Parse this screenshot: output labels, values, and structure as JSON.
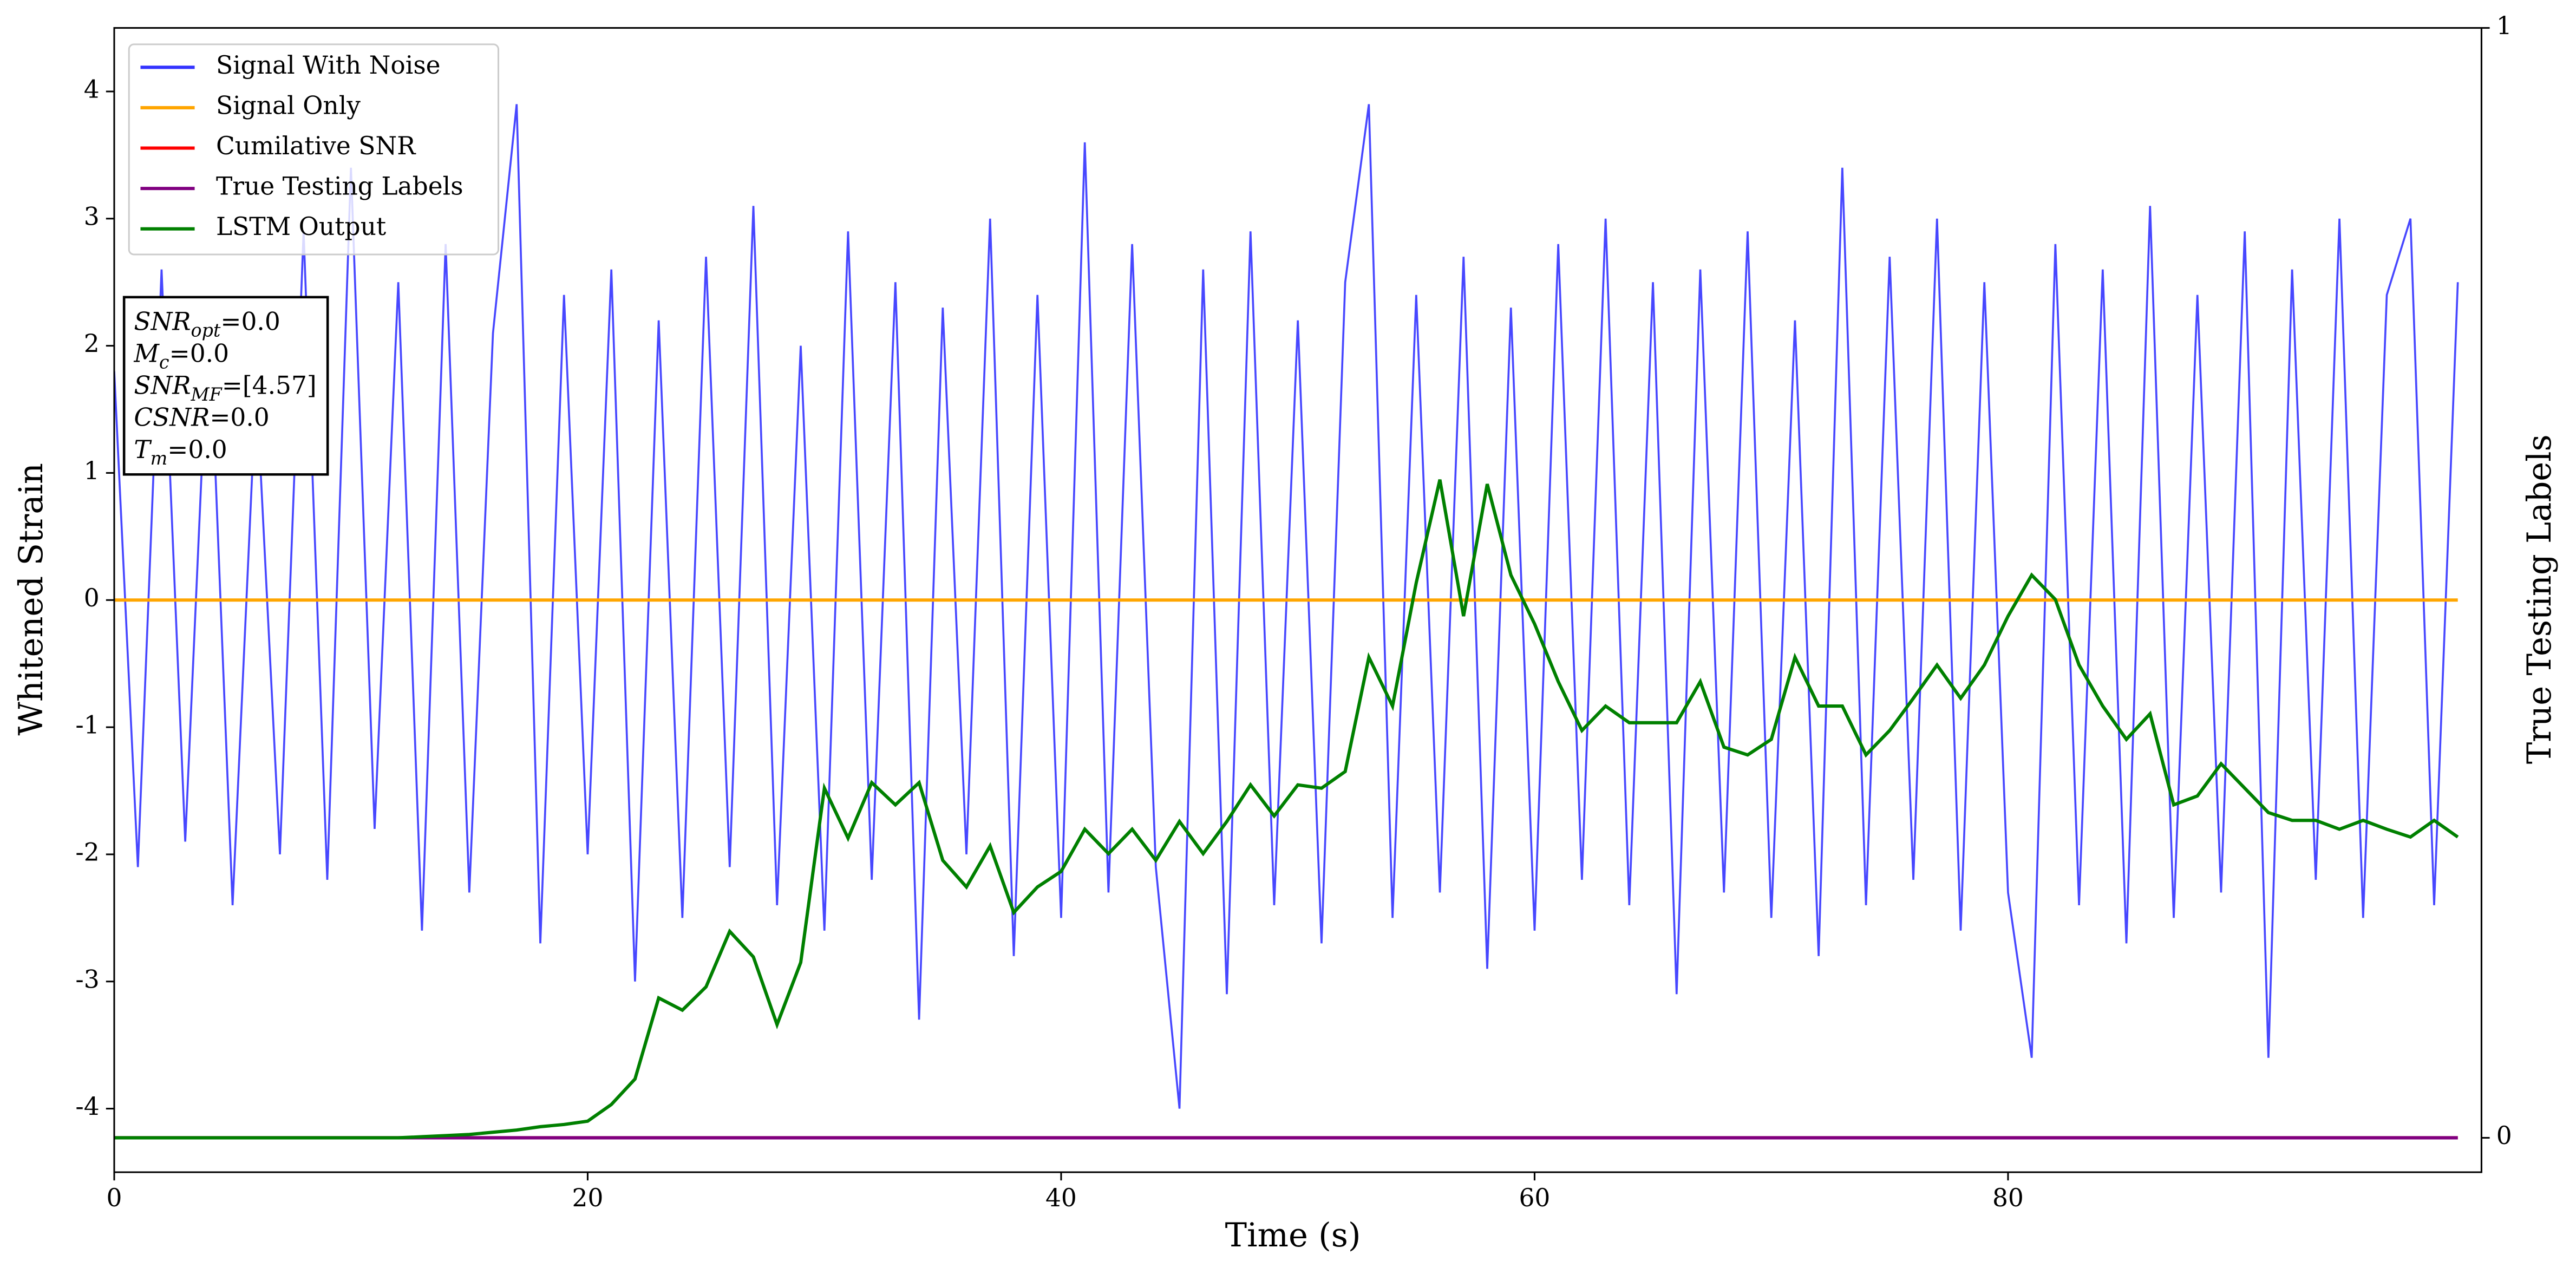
{
  "chart_data": {
    "type": "line",
    "xlabel": "Time (s)",
    "ylabel": "Whitened Strain",
    "y2label": "True Testing Labels",
    "x": [
      0,
      1,
      2,
      3,
      4,
      5,
      6,
      7,
      8,
      9,
      10,
      11,
      12,
      13,
      14,
      15,
      16,
      17,
      18,
      19,
      20,
      21,
      22,
      23,
      24,
      25,
      26,
      27,
      28,
      29,
      30,
      31,
      32,
      33,
      34,
      35,
      36,
      37,
      38,
      39,
      40,
      41,
      42,
      43,
      44,
      45,
      46,
      47,
      48,
      49,
      50,
      51,
      52,
      53,
      54,
      55,
      56,
      57,
      58,
      59,
      60,
      61,
      62,
      63,
      64,
      65,
      66,
      67,
      68,
      69,
      70,
      71,
      72,
      73,
      74,
      75,
      76,
      77,
      78,
      79,
      80,
      81,
      82,
      83,
      84,
      85,
      86,
      87,
      88,
      89,
      90,
      91,
      92,
      93,
      94,
      95,
      96,
      97,
      98,
      99
    ],
    "series": [
      {
        "name": "Signal With Noise",
        "color": "#3333ff",
        "axis": "y",
        "values": [
          1.8,
          -2.1,
          2.6,
          -1.9,
          2.3,
          -2.4,
          1.7,
          -2.0,
          2.9,
          -2.2,
          3.4,
          -1.8,
          2.5,
          -2.6,
          2.8,
          -2.3,
          2.1,
          3.9,
          -2.7,
          2.4,
          -2.0,
          2.6,
          -3.0,
          2.2,
          -2.5,
          2.7,
          -2.1,
          3.1,
          -2.4,
          2.0,
          -2.6,
          2.9,
          -2.2,
          2.5,
          -3.3,
          2.3,
          -2.0,
          3.0,
          -2.8,
          2.4,
          -2.5,
          3.6,
          -2.3,
          2.8,
          -2.1,
          -4.0,
          2.6,
          -3.1,
          2.9,
          -2.4,
          2.2,
          -2.7,
          2.5,
          3.9,
          -2.5,
          2.4,
          -2.3,
          2.7,
          -2.9,
          2.3,
          -2.6,
          2.8,
          -2.2,
          3.0,
          -2.4,
          2.5,
          -3.1,
          2.6,
          -2.3,
          2.9,
          -2.5,
          2.2,
          -2.8,
          3.4,
          -2.4,
          2.7,
          -2.2,
          3.0,
          -2.6,
          2.5,
          -2.3,
          -3.6,
          2.8,
          -2.4,
          2.6,
          -2.7,
          3.1,
          -2.5,
          2.4,
          -2.3,
          2.9,
          -3.6,
          2.6,
          -2.2,
          3.0,
          -2.5,
          2.4,
          3.0,
          -2.4,
          2.5
        ]
      },
      {
        "name": "Signal Only",
        "color": "#ffa500",
        "axis": "y",
        "values": [
          0,
          0,
          0,
          0,
          0,
          0,
          0,
          0,
          0,
          0,
          0,
          0,
          0,
          0,
          0,
          0,
          0,
          0,
          0,
          0,
          0,
          0,
          0,
          0,
          0,
          0,
          0,
          0,
          0,
          0,
          0,
          0,
          0,
          0,
          0,
          0,
          0,
          0,
          0,
          0,
          0,
          0,
          0,
          0,
          0,
          0,
          0,
          0,
          0,
          0,
          0,
          0,
          0,
          0,
          0,
          0,
          0,
          0,
          0,
          0,
          0,
          0,
          0,
          0,
          0,
          0,
          0,
          0,
          0,
          0,
          0,
          0,
          0,
          0,
          0,
          0,
          0,
          0,
          0,
          0,
          0,
          0,
          0,
          0,
          0,
          0,
          0,
          0,
          0,
          0,
          0,
          0,
          0,
          0,
          0,
          0,
          0,
          0,
          0,
          0
        ]
      },
      {
        "name": "Cumilative SNR",
        "color": "#ff0000",
        "axis": "y2",
        "values": [
          0,
          0,
          0,
          0,
          0,
          0,
          0,
          0,
          0,
          0,
          0,
          0,
          0,
          0,
          0,
          0,
          0,
          0,
          0,
          0,
          0,
          0,
          0,
          0,
          0,
          0,
          0,
          0,
          0,
          0,
          0,
          0,
          0,
          0,
          0,
          0,
          0,
          0,
          0,
          0,
          0,
          0,
          0,
          0,
          0,
          0,
          0,
          0,
          0,
          0,
          0,
          0,
          0,
          0,
          0,
          0,
          0,
          0,
          0,
          0,
          0,
          0,
          0,
          0,
          0,
          0,
          0,
          0,
          0,
          0,
          0,
          0,
          0,
          0,
          0,
          0,
          0,
          0,
          0,
          0,
          0,
          0,
          0,
          0,
          0,
          0,
          0,
          0,
          0,
          0,
          0,
          0,
          0,
          0,
          0,
          0,
          0,
          0,
          0,
          0
        ]
      },
      {
        "name": "True Testing Labels",
        "color": "#800080",
        "axis": "y2",
        "values": [
          0,
          0,
          0,
          0,
          0,
          0,
          0,
          0,
          0,
          0,
          0,
          0,
          0,
          0,
          0,
          0,
          0,
          0,
          0,
          0,
          0,
          0,
          0,
          0,
          0,
          0,
          0,
          0,
          0,
          0,
          0,
          0,
          0,
          0,
          0,
          0,
          0,
          0,
          0,
          0,
          0,
          0,
          0,
          0,
          0,
          0,
          0,
          0,
          0,
          0,
          0,
          0,
          0,
          0,
          0,
          0,
          0,
          0,
          0,
          0,
          0,
          0,
          0,
          0,
          0,
          0,
          0,
          0,
          0,
          0,
          0,
          0,
          0,
          0,
          0,
          0,
          0,
          0,
          0,
          0,
          0,
          0,
          0,
          0,
          0,
          0,
          0,
          0,
          0,
          0,
          0,
          0,
          0,
          0,
          0,
          0,
          0,
          0,
          0,
          0
        ]
      },
      {
        "name": "LSTM Output",
        "color": "#008000",
        "axis": "y2",
        "values": [
          0,
          0,
          0,
          0,
          0,
          0,
          0,
          0,
          0,
          0,
          0,
          0,
          0,
          0.001,
          0.002,
          0.003,
          0.005,
          0.007,
          0.01,
          0.012,
          0.015,
          0.03,
          0.053,
          0.126,
          0.115,
          0.136,
          0.186,
          0.163,
          0.102,
          0.158,
          0.315,
          0.27,
          0.32,
          0.3,
          0.32,
          0.25,
          0.226,
          0.263,
          0.203,
          0.226,
          0.24,
          0.278,
          0.256,
          0.278,
          0.25,
          0.285,
          0.256,
          0.285,
          0.318,
          0.29,
          0.318,
          0.315,
          0.33,
          0.433,
          0.389,
          0.5,
          0.593,
          0.47,
          0.589,
          0.507,
          0.463,
          0.411,
          0.367,
          0.389,
          0.374,
          0.374,
          0.374,
          0.411,
          0.352,
          0.345,
          0.359,
          0.433,
          0.389,
          0.389,
          0.345,
          0.367,
          0.396,
          0.426,
          0.396,
          0.426,
          0.47,
          0.507,
          0.485,
          0.426,
          0.389,
          0.359,
          0.382,
          0.3,
          0.308,
          0.337,
          0.315,
          0.293,
          0.286,
          0.286,
          0.278,
          0.286,
          0.278,
          0.271,
          0.286,
          0.271
        ]
      }
    ],
    "xlim": [
      0,
      100
    ],
    "xticks": [
      0,
      20,
      40,
      60,
      80
    ],
    "ylim": [
      -4.5,
      4.5
    ],
    "yticks": [
      -4,
      -3,
      -2,
      -1,
      0,
      1,
      2,
      3,
      4
    ],
    "y2lim": [
      -0.031,
      1
    ],
    "y2ticks": [
      0,
      1
    ],
    "legend": "upper left",
    "annotations": [
      {
        "text": "SNR",
        "sub": "opt",
        "rest": "=0.0"
      },
      {
        "text": "M",
        "sub": "c",
        "rest": "=0.0"
      },
      {
        "text": "SNR",
        "sub": "MF",
        "rest": "=[4.57]"
      },
      {
        "text": "CSNR",
        "rest": "=0.0"
      },
      {
        "text": "T",
        "sub": "m",
        "rest": "=0.0"
      }
    ]
  }
}
